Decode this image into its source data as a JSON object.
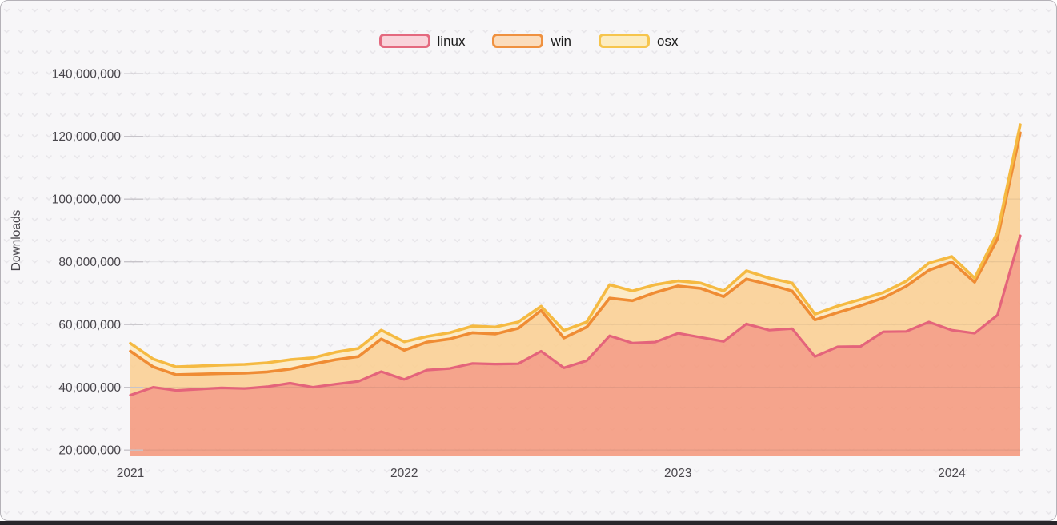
{
  "page": {
    "card_background": "#f7f6f8",
    "card_border_color": "#b5b2b8",
    "dot_pattern_color": "#e7e5e9",
    "gridline_color": "rgba(40,35,45,0.08)",
    "tick_dash_color": "#c7c4ca",
    "axis_text_color": "#49464c",
    "bottom_edge_color": "#29262b"
  },
  "chart_data": {
    "type": "area",
    "stacked": true,
    "title": "",
    "xlabel": "",
    "ylabel": "Downloads",
    "grid": "horizontal",
    "legend_position": "top-center",
    "value_unit": "downloads",
    "values_scale": 1000000,
    "ylim_millions": [
      18,
      142
    ],
    "x": [
      "2021-01",
      "2021-02",
      "2021-03",
      "2021-04",
      "2021-05",
      "2021-06",
      "2021-07",
      "2021-08",
      "2021-09",
      "2021-10",
      "2021-11",
      "2021-12",
      "2022-01",
      "2022-02",
      "2022-03",
      "2022-04",
      "2022-05",
      "2022-06",
      "2022-07",
      "2022-08",
      "2022-09",
      "2022-10",
      "2022-11",
      "2022-12",
      "2023-01",
      "2023-02",
      "2023-03",
      "2023-04",
      "2023-05",
      "2023-06",
      "2023-07",
      "2023-08",
      "2023-09",
      "2023-10",
      "2023-11",
      "2023-12",
      "2024-01",
      "2024-02",
      "2024-03",
      "2024-04"
    ],
    "x_tick_labels": [
      "2021",
      "2022",
      "2023",
      "2024"
    ],
    "x_tick_indices": [
      0,
      12,
      24,
      36
    ],
    "y_ticks_millions": [
      20,
      40,
      60,
      80,
      100,
      120,
      140
    ],
    "y_tick_labels": [
      "20,000,000",
      "40,000,000",
      "60,000,000",
      "80,000,000",
      "100,000,000",
      "120,000,000",
      "140,000,000"
    ],
    "series": [
      {
        "name": "linux",
        "line_color": "#e4647b",
        "fill_color": "#f5997c",
        "legend_fill": "#f9d3da",
        "legend_border": "#e4697f",
        "values_millions": [
          37.5,
          40,
          39,
          39.4,
          39.8,
          39.6,
          40.2,
          41.3,
          40,
          41,
          41.9,
          45,
          42.5,
          45.5,
          46,
          47.6,
          47.4,
          47.5,
          51.5,
          46.2,
          48.5,
          56.4,
          54.1,
          54.4,
          57.2,
          55.9,
          54.6,
          60.2,
          58.2,
          58.7,
          49.8,
          52.9,
          53,
          57.7,
          57.8,
          60.8,
          58.2,
          57.2,
          63,
          88.3
        ]
      },
      {
        "name": "win",
        "line_color": "#ef8c34",
        "fill_color": "#fbcf92",
        "legend_fill": "#fbdcbc",
        "legend_border": "#ef9140",
        "values_millions": [
          14,
          6.5,
          5,
          4.8,
          4.6,
          4.9,
          4.7,
          4.5,
          7.4,
          7.8,
          7.9,
          10.4,
          9.3,
          8.9,
          9.4,
          9.8,
          9.6,
          11.3,
          13,
          9.5,
          10.7,
          12,
          13.5,
          15.8,
          15.1,
          15.6,
          14.3,
          14.3,
          14.5,
          12,
          11.7,
          10.9,
          13,
          10.8,
          14.4,
          16.5,
          21.7,
          16.3,
          24.3,
          32.8
        ]
      },
      {
        "name": "osx",
        "line_color": "#f5ba42",
        "fill_color": "#fde9bf",
        "legend_fill": "#fcecc0",
        "legend_border": "#f6c54d",
        "values_millions": [
          2.5,
          2.5,
          2.5,
          2.6,
          2.7,
          2.8,
          2.9,
          3,
          2,
          2.4,
          2.6,
          2.8,
          2.7,
          1.8,
          2,
          2.1,
          2.2,
          2,
          1.3,
          2.4,
          1.6,
          4.3,
          3.1,
          2.5,
          1.6,
          1.7,
          1.8,
          2.6,
          2.1,
          2.5,
          1.8,
          2.1,
          2,
          1.7,
          1.6,
          2.3,
          1.8,
          1.3,
          2,
          2.6
        ]
      }
    ]
  }
}
